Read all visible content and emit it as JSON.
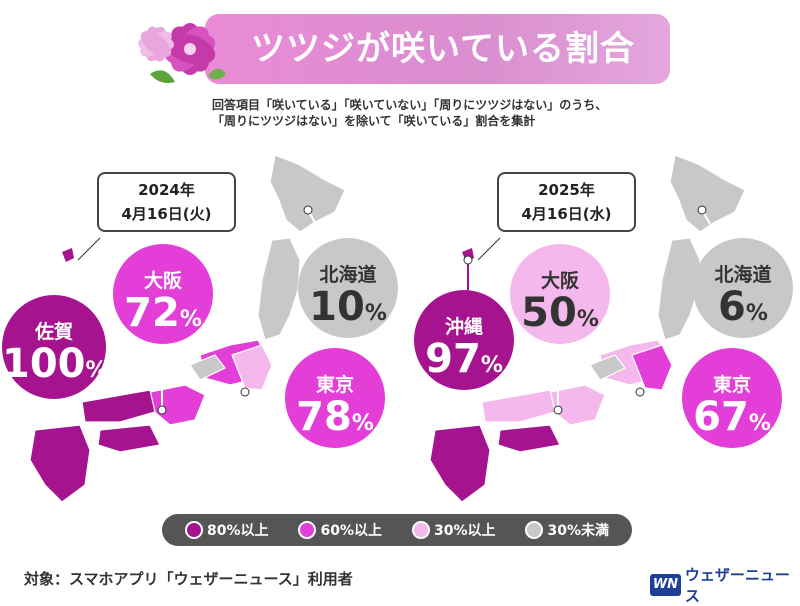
{
  "title": "ツツジが咲いている割合",
  "note_line1": "回答項目「咲いている」「咲いていない」「周りにツツジはない」のうち、",
  "note_line2": "「周りにツツジはない」を除いて「咲いている」割合を集計",
  "colors": {
    "level_80": "#a6138f",
    "level_60": "#e33fd8",
    "level_30": "#f4b8ec",
    "level_under30": "#c8c8c8"
  },
  "maps": [
    {
      "date_line1": "2024年",
      "date_line2": "4月16日(火)",
      "callouts": [
        {
          "name": "佐賀",
          "value": "100",
          "unit": "%",
          "level": "80%以上"
        },
        {
          "name": "大阪",
          "value": "72",
          "unit": "%",
          "level": "60%以上"
        },
        {
          "name": "北海道",
          "value": "10",
          "unit": "%",
          "level": "30%未満"
        },
        {
          "name": "東京",
          "value": "78",
          "unit": "%",
          "level": "60%以上"
        }
      ]
    },
    {
      "date_line1": "2025年",
      "date_line2": "4月16日(水)",
      "callouts": [
        {
          "name": "沖縄",
          "value": "97",
          "unit": "%",
          "level": "80%以上"
        },
        {
          "name": "大阪",
          "value": "50",
          "unit": "%",
          "level": "30%以上"
        },
        {
          "name": "北海道",
          "value": "6",
          "unit": "%",
          "level": "30%未満"
        },
        {
          "name": "東京",
          "value": "67",
          "unit": "%",
          "level": "60%以上"
        }
      ]
    }
  ],
  "legend": [
    {
      "label": "80%以上",
      "color": "#a6138f"
    },
    {
      "label": "60%以上",
      "color": "#e33fd8"
    },
    {
      "label": "30%以上",
      "color": "#f4b8ec"
    },
    {
      "label": "30%未満",
      "color": "#c8c8c8"
    }
  ],
  "footer": "対象：スマホアプリ「ウェザーニュース」利用者",
  "brand": {
    "logo": "WN",
    "name": "ウェザーニュース"
  }
}
